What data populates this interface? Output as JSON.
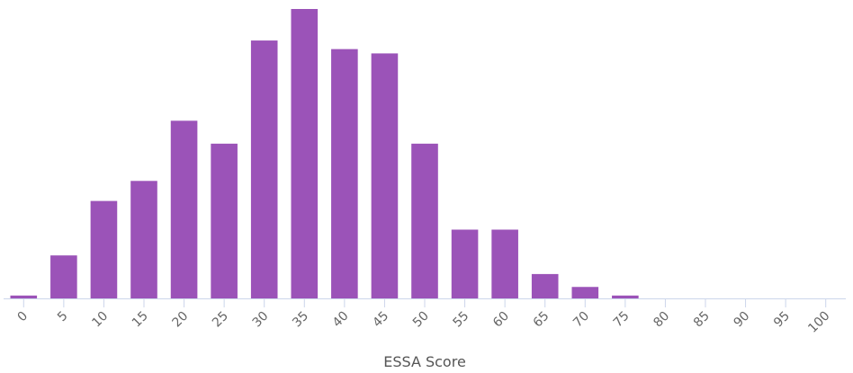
{
  "chart_data": {
    "type": "bar",
    "title": "",
    "xlabel": "ESSA Score",
    "ylabel": "",
    "categories": [
      "0",
      "5",
      "10",
      "15",
      "20",
      "25",
      "30",
      "35",
      "40",
      "45",
      "50",
      "55",
      "60",
      "65",
      "70",
      "75",
      "80",
      "85",
      "90",
      "95",
      "100"
    ],
    "values": [
      1,
      15,
      34,
      41,
      62,
      54,
      90,
      101,
      87,
      85.5,
      54,
      24,
      24,
      8.5,
      4,
      1,
      0,
      0,
      0,
      0,
      0
    ],
    "ylim": [
      0,
      101
    ],
    "grid": false,
    "legend": "none",
    "colors": {
      "bar": "#9b53b8",
      "axis": "#ccd6eb",
      "tick_text": "#666666",
      "axis_title": "#555555"
    }
  }
}
